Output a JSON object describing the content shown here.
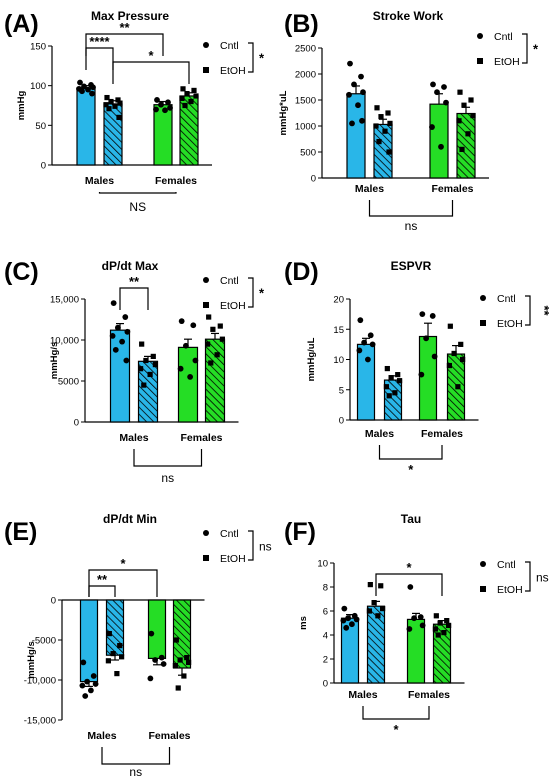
{
  "colors": {
    "male": "#29b6e8",
    "female": "#25dd25",
    "stroke": "#000000"
  },
  "legend": {
    "control": "Cntl",
    "ethanol": "EtOH"
  },
  "chart_data": [
    {
      "type": "bar",
      "panel": "(A)",
      "title": "Max Pressure",
      "ylabel": "mmHg",
      "categories": [
        "Males",
        "Females"
      ],
      "ylim": [
        0,
        150
      ],
      "yticks": [
        0,
        50,
        100,
        150
      ],
      "tick_labels": [
        "0",
        "50",
        "100",
        "150"
      ],
      "series": [
        {
          "name": "Cntl",
          "values": [
            97,
            76
          ],
          "sem": [
            3,
            4
          ],
          "points": [
            [
              104,
              101,
              99,
              98,
              96,
              95,
              93,
              90
            ],
            [
              82,
              79,
              76,
              72,
              70,
              69
            ]
          ]
        },
        {
          "name": "EtOH",
          "values": [
            77,
            87
          ],
          "sem": [
            4,
            4
          ],
          "points": [
            [
              85,
              82,
              80,
              78,
              76,
              74,
              71,
              60
            ],
            [
              96,
              94,
              90,
              87,
              84,
              80,
              75
            ]
          ]
        }
      ],
      "legend_sig": "*",
      "comparisons": [
        {
          "label": "**",
          "from": [
            0,
            0
          ],
          "to": [
            1,
            0
          ]
        },
        {
          "label": "****",
          "from": [
            0,
            0
          ],
          "to": [
            0,
            1
          ]
        },
        {
          "label": "*",
          "from": [
            0,
            1
          ],
          "to": [
            1,
            1
          ]
        }
      ],
      "bottom_label": "NS"
    },
    {
      "type": "bar",
      "panel": "(B)",
      "title": "Stroke Work",
      "ylabel": "mmHg*uL",
      "categories": [
        "Males",
        "Females"
      ],
      "ylim": [
        0,
        2500
      ],
      "yticks": [
        0,
        500,
        1000,
        1500,
        2000,
        2500
      ],
      "tick_labels": [
        "0",
        "500",
        "1000",
        "1500",
        "2000",
        "2500"
      ],
      "series": [
        {
          "name": "Cntl",
          "values": [
            1620,
            1420
          ],
          "sem": [
            150,
            200
          ],
          "points": [
            [
              2200,
              1950,
              1800,
              1650,
              1600,
              1400,
              1050,
              1100
            ],
            [
              1800,
              1750,
              1650,
              1450,
              980,
              600
            ]
          ]
        },
        {
          "name": "EtOH",
          "values": [
            1030,
            1240
          ],
          "sem": [
            100,
            120
          ],
          "points": [
            [
              1350,
              1250,
              1180,
              1050,
              1000,
              900,
              700,
              500
            ],
            [
              1650,
              1500,
              1400,
              1200,
              1100,
              850,
              550
            ]
          ]
        }
      ],
      "legend_sig": "*",
      "comparisons": [],
      "bottom_label": "ns"
    },
    {
      "type": "bar",
      "panel": "(C)",
      "title": "dP/dt Max",
      "ylabel": "mmHg/s",
      "categories": [
        "Males",
        "Females"
      ],
      "ylim": [
        0,
        15000
      ],
      "yticks": [
        0,
        5000,
        10000,
        15000
      ],
      "tick_labels": [
        "0",
        "5000",
        "10,000",
        "15,000"
      ],
      "series": [
        {
          "name": "Cntl",
          "values": [
            11200,
            9100
          ],
          "sem": [
            800,
            1000
          ],
          "points": [
            [
              14500,
              12800,
              11500,
              11000,
              10500,
              9800,
              8800,
              7500
            ],
            [
              12300,
              11800,
              9300,
              7500,
              6500,
              5500
            ]
          ]
        },
        {
          "name": "EtOH",
          "values": [
            7400,
            10100
          ],
          "sem": [
            600,
            700
          ],
          "points": [
            [
              9500,
              8000,
              7500,
              7000,
              6500,
              5800,
              4500
            ],
            [
              12800,
              11700,
              11300,
              10100,
              9500,
              8200,
              7200
            ]
          ]
        }
      ],
      "legend_sig": "*",
      "comparisons": [
        {
          "label": "**",
          "from": [
            0,
            0
          ],
          "to": [
            0,
            1
          ]
        }
      ],
      "bottom_label": "ns"
    },
    {
      "type": "bar",
      "panel": "(D)",
      "title": "ESPVR",
      "ylabel": "mmHg/uL",
      "categories": [
        "Males",
        "Females"
      ],
      "ylim": [
        0,
        20
      ],
      "yticks": [
        0,
        5,
        10,
        15,
        20
      ],
      "tick_labels": [
        "0",
        "5",
        "10",
        "15",
        "20"
      ],
      "series": [
        {
          "name": "Cntl",
          "values": [
            12.5,
            13.8
          ],
          "sem": [
            1.0,
            2.2
          ],
          "points": [
            [
              16.5,
              14,
              12.8,
              12.5,
              11.5,
              10
            ],
            [
              17.5,
              17.2,
              13.5,
              10.5,
              7.5
            ]
          ]
        },
        {
          "name": "EtOH",
          "values": [
            6.6,
            10.9
          ],
          "sem": [
            0.7,
            1.4
          ],
          "points": [
            [
              8.5,
              7.5,
              7,
              6.5,
              5.5,
              4.5,
              4
            ],
            [
              15.5,
              12.5,
              11,
              10,
              9,
              5.5
            ]
          ]
        }
      ],
      "legend_sig": "**",
      "comparisons": [],
      "bottom_label": "*"
    },
    {
      "type": "bar",
      "panel": "(E)",
      "title": "dP/dt Min",
      "ylabel": "mmHg/s",
      "categories": [
        "Males",
        "Females"
      ],
      "ylim": [
        -15000,
        0
      ],
      "yticks": [
        -15000,
        -10000,
        -5000,
        0
      ],
      "tick_labels": [
        "-15,000",
        "-10,000",
        "-5000",
        "0"
      ],
      "series": [
        {
          "name": "Cntl",
          "values": [
            -10200,
            -7300
          ],
          "sem": [
            600,
            800
          ],
          "points": [
            [
              -7800,
              -9500,
              -10200,
              -10500,
              -10700,
              -11300,
              -12000
            ],
            [
              -4200,
              -7200,
              -7500,
              -8000,
              -9800
            ]
          ]
        },
        {
          "name": "EtOH",
          "values": [
            -6900,
            -8500
          ],
          "sem": [
            600,
            900
          ],
          "points": [
            [
              -4200,
              -5700,
              -6700,
              -7100,
              -7600,
              -9200
            ],
            [
              -5000,
              -7200,
              -7500,
              -7800,
              -8200,
              -9500,
              -11000
            ]
          ]
        }
      ],
      "legend_sig": "ns",
      "comparisons": [
        {
          "label": "**",
          "from": [
            0,
            0
          ],
          "to": [
            0,
            1
          ]
        },
        {
          "label": "*",
          "from": [
            0,
            0
          ],
          "to": [
            1,
            0
          ]
        }
      ],
      "bottom_label": "ns"
    },
    {
      "type": "bar",
      "panel": "(F)",
      "title": "Tau",
      "ylabel": "ms",
      "categories": [
        "Males",
        "Females"
      ],
      "ylim": [
        0,
        10
      ],
      "yticks": [
        0,
        2,
        4,
        6,
        8,
        10
      ],
      "tick_labels": [
        "0",
        "2",
        "4",
        "6",
        "8",
        "10"
      ],
      "series": [
        {
          "name": "Cntl",
          "values": [
            5.4,
            5.3
          ],
          "sem": [
            0.3,
            0.5
          ],
          "points": [
            [
              6.2,
              5.6,
              5.4,
              5.3,
              5.2,
              4.9,
              4.6
            ],
            [
              8.0,
              5.5,
              5.4,
              4.8,
              4.5
            ]
          ]
        },
        {
          "name": "EtOH",
          "values": [
            6.4,
            4.9
          ],
          "sem": [
            0.4,
            0.3
          ],
          "points": [
            [
              8.2,
              8.1,
              6.7,
              6.2,
              6.0,
              5.6
            ],
            [
              5.6,
              5.2,
              5.0,
              4.8,
              4.5,
              4.2,
              4.0
            ]
          ]
        }
      ],
      "legend_sig": "ns",
      "comparisons": [
        {
          "label": "*",
          "from": [
            0,
            1
          ],
          "to": [
            1,
            1
          ]
        }
      ],
      "bottom_label": "*"
    }
  ]
}
